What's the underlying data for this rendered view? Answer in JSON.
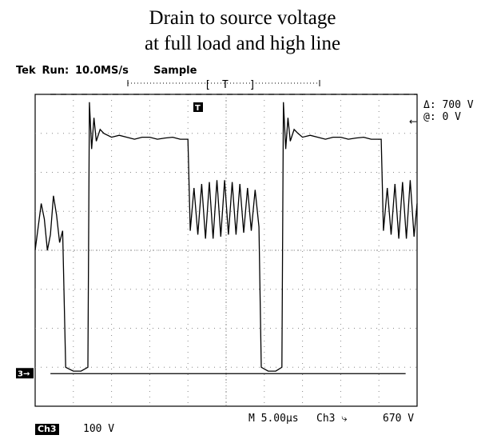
{
  "chart_data": {
    "type": "line",
    "title_line1": "Drain to source voltage",
    "title_line2": "at full load and high line",
    "instrument": {
      "brand": "Tek",
      "run_label": "Run:",
      "sample_rate": "10.0MS/s",
      "mode": "Sample",
      "trigger_window_label": "T"
    },
    "readouts": {
      "delta": "Δ: 700 V",
      "at": "@: 0 V"
    },
    "bottom": {
      "timebase": "M 5.00µs",
      "channel": "Ch3",
      "trigger_slope": "Ch3 ⤷",
      "trigger_level": "670 V",
      "ch_label": "Ch3",
      "ch_scale": "100 V",
      "ground_marker": "3→"
    },
    "units": {
      "x": "µs",
      "y": "V"
    },
    "xlim": [
      0,
      50
    ],
    "ylim": [
      -100,
      700
    ],
    "cursor_level": 700,
    "grid": true,
    "series": [
      {
        "name": "",
        "points": [
          [
            0.0,
            300
          ],
          [
            0.4,
            360
          ],
          [
            0.8,
            420
          ],
          [
            1.2,
            380
          ],
          [
            1.6,
            300
          ],
          [
            2.0,
            340
          ],
          [
            2.4,
            440
          ],
          [
            2.8,
            390
          ],
          [
            3.2,
            320
          ],
          [
            3.6,
            350
          ],
          [
            4.0,
            0
          ],
          [
            5.0,
            -10
          ],
          [
            6.0,
            -10
          ],
          [
            6.9,
            0
          ],
          [
            7.1,
            680
          ],
          [
            7.4,
            560
          ],
          [
            7.7,
            640
          ],
          [
            8.0,
            580
          ],
          [
            8.5,
            610
          ],
          [
            9.0,
            600
          ],
          [
            10,
            590
          ],
          [
            11,
            595
          ],
          [
            12,
            590
          ],
          [
            13,
            585
          ],
          [
            14,
            590
          ],
          [
            15,
            590
          ],
          [
            16,
            585
          ],
          [
            17,
            588
          ],
          [
            18,
            590
          ],
          [
            19,
            585
          ],
          [
            20,
            585
          ],
          [
            20.3,
            350
          ],
          [
            20.8,
            460
          ],
          [
            21.3,
            340
          ],
          [
            21.8,
            470
          ],
          [
            22.3,
            330
          ],
          [
            22.8,
            475
          ],
          [
            23.3,
            330
          ],
          [
            23.8,
            480
          ],
          [
            24.3,
            335
          ],
          [
            24.8,
            480
          ],
          [
            25.3,
            340
          ],
          [
            25.8,
            475
          ],
          [
            26.3,
            340
          ],
          [
            26.8,
            470
          ],
          [
            27.3,
            345
          ],
          [
            27.8,
            460
          ],
          [
            28.3,
            350
          ],
          [
            28.8,
            455
          ],
          [
            29.3,
            360
          ],
          [
            29.6,
            0
          ],
          [
            30.5,
            -10
          ],
          [
            31.5,
            -10
          ],
          [
            32.3,
            0
          ],
          [
            32.5,
            680
          ],
          [
            32.8,
            560
          ],
          [
            33.1,
            640
          ],
          [
            33.4,
            580
          ],
          [
            33.9,
            610
          ],
          [
            34.4,
            600
          ],
          [
            35,
            590
          ],
          [
            36,
            595
          ],
          [
            37,
            590
          ],
          [
            38,
            585
          ],
          [
            39,
            590
          ],
          [
            40,
            590
          ],
          [
            41,
            585
          ],
          [
            42,
            588
          ],
          [
            43,
            590
          ],
          [
            44,
            585
          ],
          [
            45.3,
            585
          ],
          [
            45.6,
            350
          ],
          [
            46.1,
            460
          ],
          [
            46.6,
            340
          ],
          [
            47.1,
            470
          ],
          [
            47.6,
            330
          ],
          [
            48.1,
            475
          ],
          [
            48.6,
            330
          ],
          [
            49.1,
            480
          ],
          [
            49.6,
            335
          ],
          [
            50,
            420
          ]
        ]
      }
    ]
  }
}
